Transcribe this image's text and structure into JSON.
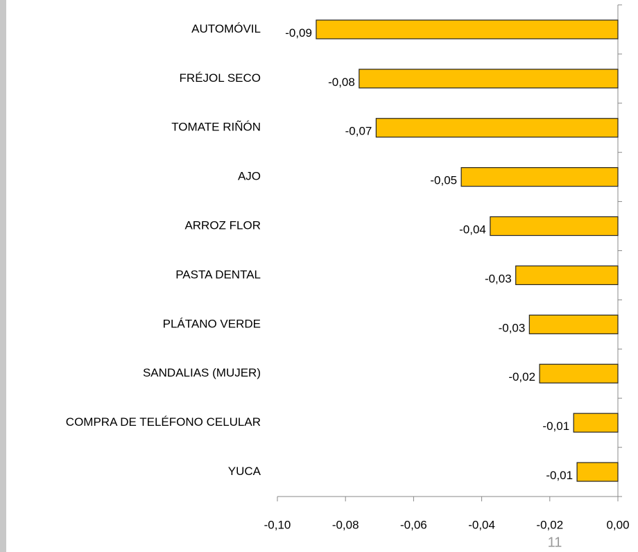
{
  "chart_data": {
    "type": "hbar",
    "categories": [
      "AUTOMÓVIL",
      "FRÉJOL SECO",
      "TOMATE RIÑÓN",
      "AJO",
      "ARROZ FLOR",
      "PASTA DENTAL",
      "PLÁTANO VERDE",
      "SANDALIAS (MUJER)",
      "COMPRA DE TELÉFONO CELULAR",
      "YUCA"
    ],
    "values": [
      -0.0886,
      -0.076,
      -0.071,
      -0.046,
      -0.0375,
      -0.03,
      -0.026,
      -0.023,
      -0.013,
      -0.012
    ],
    "value_labels": [
      "-0,09",
      "-0,08",
      "-0,07",
      "-0,05",
      "-0,04",
      "-0,03",
      "-0,03",
      "-0,02",
      "-0,01",
      "-0,01"
    ],
    "color": "#FFC000",
    "xlim": [
      -0.1,
      0
    ],
    "xticks": [
      {
        "value": -0.1,
        "label": "-0,10"
      },
      {
        "value": -0.08,
        "label": "-0,08"
      },
      {
        "value": -0.06,
        "label": "-0,06"
      },
      {
        "value": -0.04,
        "label": "-0,04"
      },
      {
        "value": -0.02,
        "label": "-0,02"
      },
      {
        "value": 0,
        "label": "0,00"
      }
    ],
    "page_number": "11"
  }
}
